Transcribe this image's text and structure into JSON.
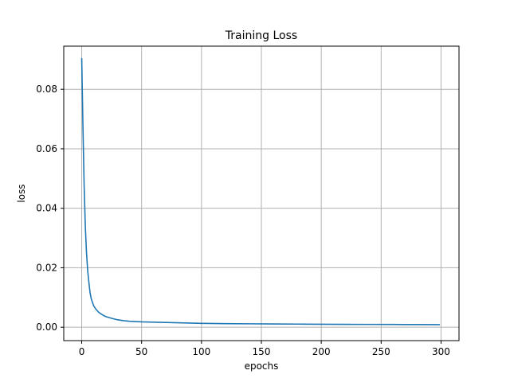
{
  "chart_data": {
    "type": "line",
    "title": "Training Loss",
    "xlabel": "epochs",
    "ylabel": "loss",
    "xlim": [
      -15,
      315
    ],
    "ylim": [
      -0.0045,
      0.0945
    ],
    "grid": true,
    "xticks": [
      0,
      50,
      100,
      150,
      200,
      250,
      300
    ],
    "xtick_labels": [
      "0",
      "50",
      "100",
      "150",
      "200",
      "250",
      "300"
    ],
    "yticks": [
      0.0,
      0.02,
      0.04,
      0.06,
      0.08
    ],
    "ytick_labels": [
      "0.00",
      "0.02",
      "0.04",
      "0.06",
      "0.08"
    ],
    "series": [
      {
        "color": "#1f77b4",
        "x": [
          0,
          1,
          2,
          3,
          4,
          5,
          6,
          7,
          8,
          10,
          12,
          14,
          16,
          18,
          20,
          25,
          30,
          35,
          40,
          50,
          60,
          70,
          80,
          90,
          100,
          120,
          140,
          160,
          180,
          200,
          220,
          240,
          260,
          280,
          299
        ],
        "y": [
          0.0905,
          0.068,
          0.048,
          0.034,
          0.025,
          0.019,
          0.015,
          0.0115,
          0.0095,
          0.0072,
          0.006,
          0.0051,
          0.0045,
          0.004,
          0.0036,
          0.003,
          0.0025,
          0.0022,
          0.002,
          0.0018,
          0.0017,
          0.0016,
          0.0015,
          0.0014,
          0.0013,
          0.0012,
          0.00115,
          0.0011,
          0.00105,
          0.001,
          0.00098,
          0.00095,
          0.00093,
          0.0009,
          0.00088
        ]
      }
    ]
  }
}
